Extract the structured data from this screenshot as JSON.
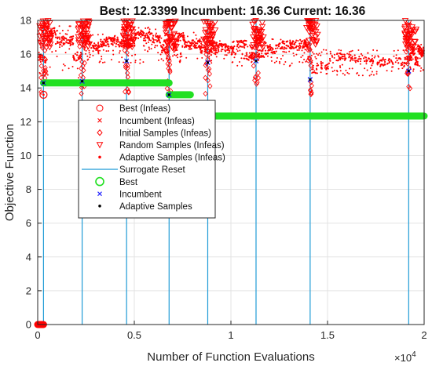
{
  "chart_data": {
    "type": "scatter",
    "title": "Best: 12.3399 Incumbent: 16.36 Current: 16.36",
    "xlabel": "Number of Function Evaluations",
    "ylabel": "Objective Function",
    "x_exponent": "×10",
    "x_exponent_power": "4",
    "xlim": [
      0,
      20000
    ],
    "ylim": [
      0,
      18
    ],
    "grid": true,
    "legend_placement": "center-left",
    "x_ticks": [
      0,
      5000,
      10000,
      15000,
      20000
    ],
    "x_tick_labels": [
      "0",
      "0.5",
      "1",
      "1.5",
      "2"
    ],
    "y_ticks": [
      0,
      2,
      4,
      6,
      8,
      10,
      12,
      14,
      16,
      18
    ],
    "y_tick_labels": [
      "0",
      "2",
      "4",
      "6",
      "8",
      "10",
      "12",
      "14",
      "16",
      "18"
    ],
    "colors": {
      "infeasible": "#ff0000",
      "surrogate_reset": "#1f9bd6",
      "best": "#22e022",
      "incumbent": "#1a1aff",
      "adaptive": "#000000"
    },
    "surrogate_resets": [
      300,
      2300,
      4600,
      6800,
      8800,
      11300,
      14100,
      19200
    ],
    "best_segments": [
      {
        "x_start": 0,
        "x_end": 300,
        "y": 0
      },
      {
        "x_start": 300,
        "x_end": 6800,
        "y": 14.3
      },
      {
        "x_start": 6800,
        "x_end": 7900,
        "y": 13.6
      },
      {
        "x_start": 8800,
        "x_end": 20000,
        "y": 12.34
      }
    ],
    "best_infeasible": [
      {
        "x": 300,
        "y": 13.6
      }
    ],
    "incumbent_points": [
      {
        "x": 300,
        "y": 14.3
      },
      {
        "x": 2300,
        "y": 14.4
      },
      {
        "x": 4600,
        "y": 15.6
      },
      {
        "x": 6800,
        "y": 13.6
      },
      {
        "x": 8800,
        "y": 15.5
      },
      {
        "x": 11300,
        "y": 15.6
      },
      {
        "x": 14100,
        "y": 14.5
      },
      {
        "x": 19200,
        "y": 15.0
      }
    ],
    "adaptive_infeasible_bands": [
      {
        "x_start": 0,
        "x_end": 2300,
        "y_min": 14.6,
        "y_max": 17.8
      },
      {
        "x_start": 2300,
        "x_end": 4600,
        "y_min": 15.5,
        "y_max": 17.2
      },
      {
        "x_start": 4600,
        "x_end": 6800,
        "y_min": 15.4,
        "y_max": 17.6
      },
      {
        "x_start": 6800,
        "x_end": 8800,
        "y_min": 15.5,
        "y_max": 17.3
      },
      {
        "x_start": 8800,
        "x_end": 11300,
        "y_min": 15.3,
        "y_max": 16.8
      },
      {
        "x_start": 11300,
        "x_end": 14100,
        "y_min": 15.2,
        "y_max": 16.9
      },
      {
        "x_start": 14100,
        "x_end": 19200,
        "y_min": 14.7,
        "y_max": 16.3
      },
      {
        "x_start": 19200,
        "x_end": 20000,
        "y_min": 15.0,
        "y_max": 16.6
      }
    ],
    "legend": [
      {
        "label": "Best (Infeas)",
        "marker": "circle-open",
        "color": "#ff0000"
      },
      {
        "label": "Incumbent (Infeas)",
        "marker": "x",
        "color": "#ff0000"
      },
      {
        "label": "Initial Samples (Infeas)",
        "marker": "diamond-open",
        "color": "#ff0000"
      },
      {
        "label": "Random Samples (Infeas)",
        "marker": "triangle-down-open",
        "color": "#ff0000"
      },
      {
        "label": "Adaptive Samples (Infeas)",
        "marker": "dot",
        "color": "#ff0000"
      },
      {
        "label": "Surrogate Reset",
        "marker": "line",
        "color": "#1f9bd6"
      },
      {
        "label": "Best",
        "marker": "circle-open-large",
        "color": "#22e022"
      },
      {
        "label": "Incumbent",
        "marker": "x",
        "color": "#1a1aff"
      },
      {
        "label": "Adaptive Samples",
        "marker": "dot",
        "color": "#000000"
      }
    ]
  }
}
